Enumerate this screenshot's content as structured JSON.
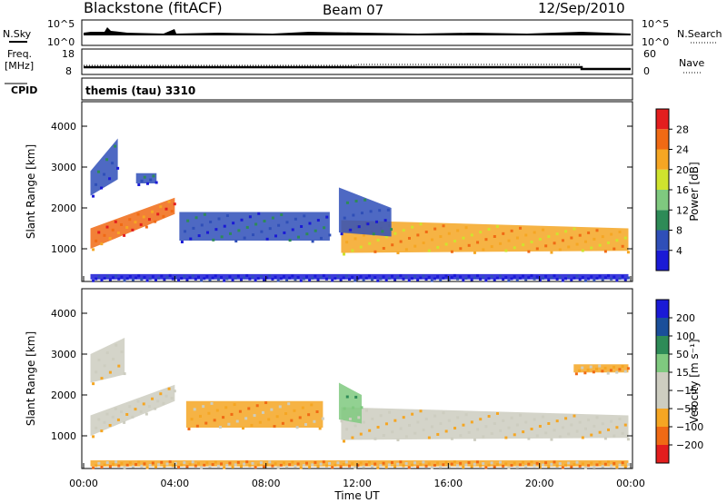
{
  "header": {
    "station": "Blackstone (fitACF)",
    "beam": "Beam 07",
    "date": "12/Sep/2010"
  },
  "labels": {
    "nsky": "N.Sky",
    "nsearch": "N.Search",
    "freq": "Freq.",
    "freq_unit": "[MHz]",
    "nave": "Nave",
    "cpid": "CPID",
    "cpid_value": "themis (tau) 3310"
  },
  "noise_axes": {
    "left_top": "10^5",
    "left_bottom": "10^0",
    "right_top": "10^5",
    "right_bottom": "10^0"
  },
  "freq_axes": {
    "left_top": "18",
    "left_bottom": "8",
    "right_top": "60",
    "right_bottom": "0"
  },
  "colors": {
    "power": [
      "#1a1ad6",
      "#2f4fb8",
      "#2e8b57",
      "#7fc97f",
      "#cfe32e",
      "#f5a623",
      "#f06a14",
      "#e31e1e"
    ],
    "velocity": [
      "#e31e1e",
      "#f06a14",
      "#f5a623",
      "#cdcdc0",
      "#cdcdc0",
      "#7fc97f",
      "#2e8b57",
      "#1a4f9a",
      "#1a1ad6"
    ]
  },
  "chart_data": [
    {
      "type": "heatmap",
      "name": "power",
      "ylabel": "Slant Range [km]",
      "ylim": [
        200,
        4600
      ],
      "y_ticks": [
        "1000",
        "2000",
        "3000",
        "4000"
      ],
      "x_ticks": [
        "00:00",
        "04:00",
        "08:00",
        "12:00",
        "16:00",
        "20:00",
        "00:00"
      ],
      "colorbar_label": "Power [dB]",
      "colorbar_ticks": [
        "4",
        "8",
        "12",
        "16",
        "20",
        "24",
        "28"
      ],
      "bands": [
        {
          "x": [
            0.3,
            4.0
          ],
          "lo": [
            1000,
            1850
          ],
          "hi": [
            1500,
            2250
          ],
          "level": 6
        },
        {
          "x": [
            0.3,
            1.5
          ],
          "lo": [
            2300,
            2700
          ],
          "hi": [
            2900,
            3700
          ],
          "level": 1
        },
        {
          "x": [
            2.3,
            3.2
          ],
          "lo": [
            2600,
            2600
          ],
          "hi": [
            2850,
            2850
          ],
          "level": 1
        },
        {
          "x": [
            4.2,
            10.8
          ],
          "lo": [
            1200,
            1200
          ],
          "hi": [
            1900,
            1900
          ],
          "level": 1
        },
        {
          "x": [
            11.3,
            23.9
          ],
          "lo": [
            900,
            950
          ],
          "hi": [
            1700,
            1500
          ],
          "level": 5
        },
        {
          "x": [
            11.2,
            13.5
          ],
          "lo": [
            1400,
            1300
          ],
          "hi": [
            2500,
            2000
          ],
          "level": 1
        },
        {
          "x": [
            0.3,
            23.9
          ],
          "lo": [
            250,
            250
          ],
          "hi": [
            380,
            380
          ],
          "level": 0
        }
      ]
    },
    {
      "type": "heatmap",
      "name": "velocity",
      "ylabel": "Slant Range [km]",
      "xlabel": "Time UT",
      "ylim": [
        200,
        4600
      ],
      "y_ticks": [
        "1000",
        "2000",
        "3000",
        "4000"
      ],
      "x_ticks": [
        "00:00",
        "04:00",
        "08:00",
        "12:00",
        "16:00",
        "20:00",
        "00:00"
      ],
      "colorbar_label": "Velocity [m s⁻¹]",
      "colorbar_ticks": [
        "200",
        "100",
        "50",
        "15",
        "−15",
        "−50",
        "−100",
        "−200"
      ],
      "bands": [
        {
          "x": [
            0.3,
            4.0
          ],
          "lo": [
            1000,
            1850
          ],
          "hi": [
            1500,
            2250
          ],
          "level": 3
        },
        {
          "x": [
            0.3,
            1.8
          ],
          "lo": [
            2300,
            2500
          ],
          "hi": [
            3000,
            3400
          ],
          "level": 3
        },
        {
          "x": [
            4.5,
            10.5
          ],
          "lo": [
            1200,
            1200
          ],
          "hi": [
            1850,
            1850
          ],
          "level": 2
        },
        {
          "x": [
            11.3,
            23.9
          ],
          "lo": [
            900,
            950
          ],
          "hi": [
            1700,
            1500
          ],
          "level": 3
        },
        {
          "x": [
            11.2,
            12.2
          ],
          "lo": [
            1400,
            1300
          ],
          "hi": [
            2300,
            2000
          ],
          "level": 5
        },
        {
          "x": [
            21.5,
            23.9
          ],
          "lo": [
            2550,
            2550
          ],
          "hi": [
            2750,
            2750
          ],
          "level": 2
        },
        {
          "x": [
            0.3,
            23.9
          ],
          "lo": [
            250,
            250
          ],
          "hi": [
            400,
            400
          ],
          "level": 2
        }
      ]
    }
  ]
}
